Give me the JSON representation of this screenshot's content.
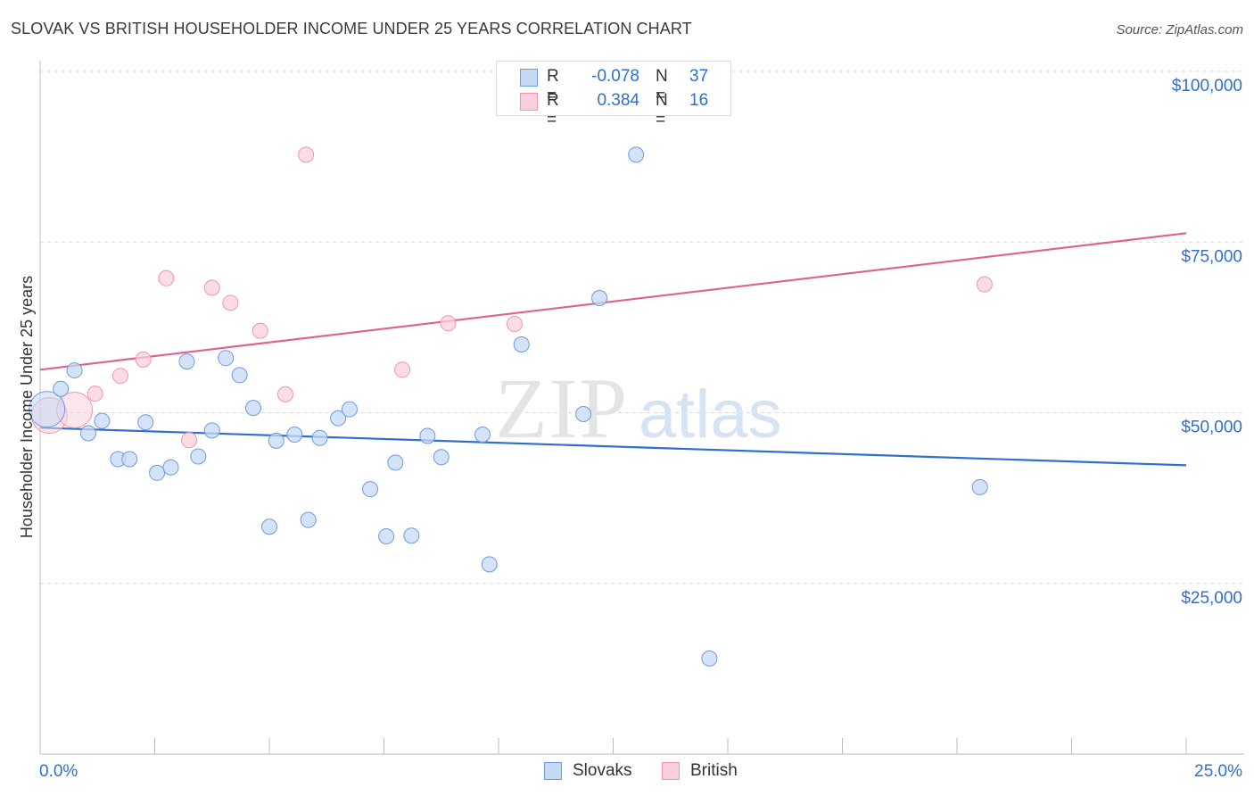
{
  "title": "SLOVAK VS BRITISH HOUSEHOLDER INCOME UNDER 25 YEARS CORRELATION CHART",
  "source": "Source: ZipAtlas.com",
  "watermark": {
    "zip": "ZIP",
    "atlas": "atlas"
  },
  "legend_top": {
    "rows": [
      {
        "r_label": "R =",
        "r_value": "-0.078",
        "n_label": "N =",
        "n_value": "37"
      },
      {
        "r_label": "R =",
        "r_value": "0.384",
        "n_label": "N =",
        "n_value": "16"
      }
    ]
  },
  "legend_bottom": {
    "items": [
      "Slovaks",
      "British"
    ]
  },
  "colors": {
    "slovaks_fill": "#c5d9f5",
    "slovaks_stroke": "#6d9be0",
    "slovaks_line": "#2f6fcf",
    "british_fill": "#fbd0dc",
    "british_stroke": "#ef96b2",
    "british_line": "#e0628b",
    "axis_label": "#2f6fcf",
    "grid": "#d9d9d9"
  },
  "chart_data": {
    "type": "scatter",
    "title": "SLOVAK VS BRITISH HOUSEHOLDER INCOME UNDER 25 YEARS CORRELATION CHART",
    "xlabel": "",
    "ylabel": "Householder Income Under 25 years",
    "xlim": [
      0,
      25
    ],
    "ylim": [
      0,
      100000
    ],
    "x_tick_labels": [
      "0.0%",
      "25.0%"
    ],
    "y_ticks": [
      25000,
      50000,
      75000,
      100000
    ],
    "y_tick_labels": [
      "$25,000",
      "$50,000",
      "$75,000",
      "$100,000"
    ],
    "series": [
      {
        "name": "Slovaks",
        "r": -0.078,
        "n": 37,
        "trend": {
          "x": [
            0,
            25
          ],
          "y": [
            47800,
            42300
          ]
        },
        "points": [
          {
            "x": 0.15,
            "y": 50500,
            "big": true
          },
          {
            "x": 0.45,
            "y": 53500
          },
          {
            "x": 0.75,
            "y": 56200
          },
          {
            "x": 1.05,
            "y": 47000
          },
          {
            "x": 1.35,
            "y": 48800
          },
          {
            "x": 1.7,
            "y": 43200
          },
          {
            "x": 1.95,
            "y": 43200
          },
          {
            "x": 2.3,
            "y": 48600
          },
          {
            "x": 2.55,
            "y": 41200
          },
          {
            "x": 2.85,
            "y": 42000
          },
          {
            "x": 3.2,
            "y": 57500
          },
          {
            "x": 3.45,
            "y": 43600
          },
          {
            "x": 3.75,
            "y": 47400
          },
          {
            "x": 4.05,
            "y": 58000
          },
          {
            "x": 4.35,
            "y": 55500
          },
          {
            "x": 4.65,
            "y": 50700
          },
          {
            "x": 5.0,
            "y": 33300
          },
          {
            "x": 5.15,
            "y": 45900
          },
          {
            "x": 5.55,
            "y": 46800
          },
          {
            "x": 5.85,
            "y": 34300
          },
          {
            "x": 6.1,
            "y": 46300
          },
          {
            "x": 6.5,
            "y": 49200
          },
          {
            "x": 6.75,
            "y": 50500
          },
          {
            "x": 7.2,
            "y": 38800
          },
          {
            "x": 7.55,
            "y": 31900
          },
          {
            "x": 7.75,
            "y": 42700
          },
          {
            "x": 8.1,
            "y": 32000
          },
          {
            "x": 8.45,
            "y": 46600
          },
          {
            "x": 8.75,
            "y": 43500
          },
          {
            "x": 9.65,
            "y": 46800
          },
          {
            "x": 9.8,
            "y": 27800
          },
          {
            "x": 10.5,
            "y": 60000
          },
          {
            "x": 11.85,
            "y": 49800
          },
          {
            "x": 12.2,
            "y": 66800
          },
          {
            "x": 13.0,
            "y": 87800
          },
          {
            "x": 14.6,
            "y": 14000
          },
          {
            "x": 20.5,
            "y": 39100
          }
        ]
      },
      {
        "name": "British",
        "r": 0.384,
        "n": 16,
        "trend": {
          "x": [
            0,
            25
          ],
          "y": [
            56300,
            76300
          ]
        },
        "points": [
          {
            "x": 0.2,
            "y": 49600,
            "big": true
          },
          {
            "x": 0.75,
            "y": 50400,
            "big": true
          },
          {
            "x": 1.2,
            "y": 52800
          },
          {
            "x": 1.75,
            "y": 55400
          },
          {
            "x": 2.25,
            "y": 57800
          },
          {
            "x": 2.75,
            "y": 69700
          },
          {
            "x": 3.25,
            "y": 46000
          },
          {
            "x": 3.75,
            "y": 68300
          },
          {
            "x": 4.15,
            "y": 66100
          },
          {
            "x": 4.8,
            "y": 62000
          },
          {
            "x": 5.35,
            "y": 52700
          },
          {
            "x": 5.8,
            "y": 87800
          },
          {
            "x": 7.9,
            "y": 56300
          },
          {
            "x": 8.9,
            "y": 63100
          },
          {
            "x": 10.35,
            "y": 63000
          },
          {
            "x": 20.6,
            "y": 68800
          }
        ]
      }
    ]
  }
}
